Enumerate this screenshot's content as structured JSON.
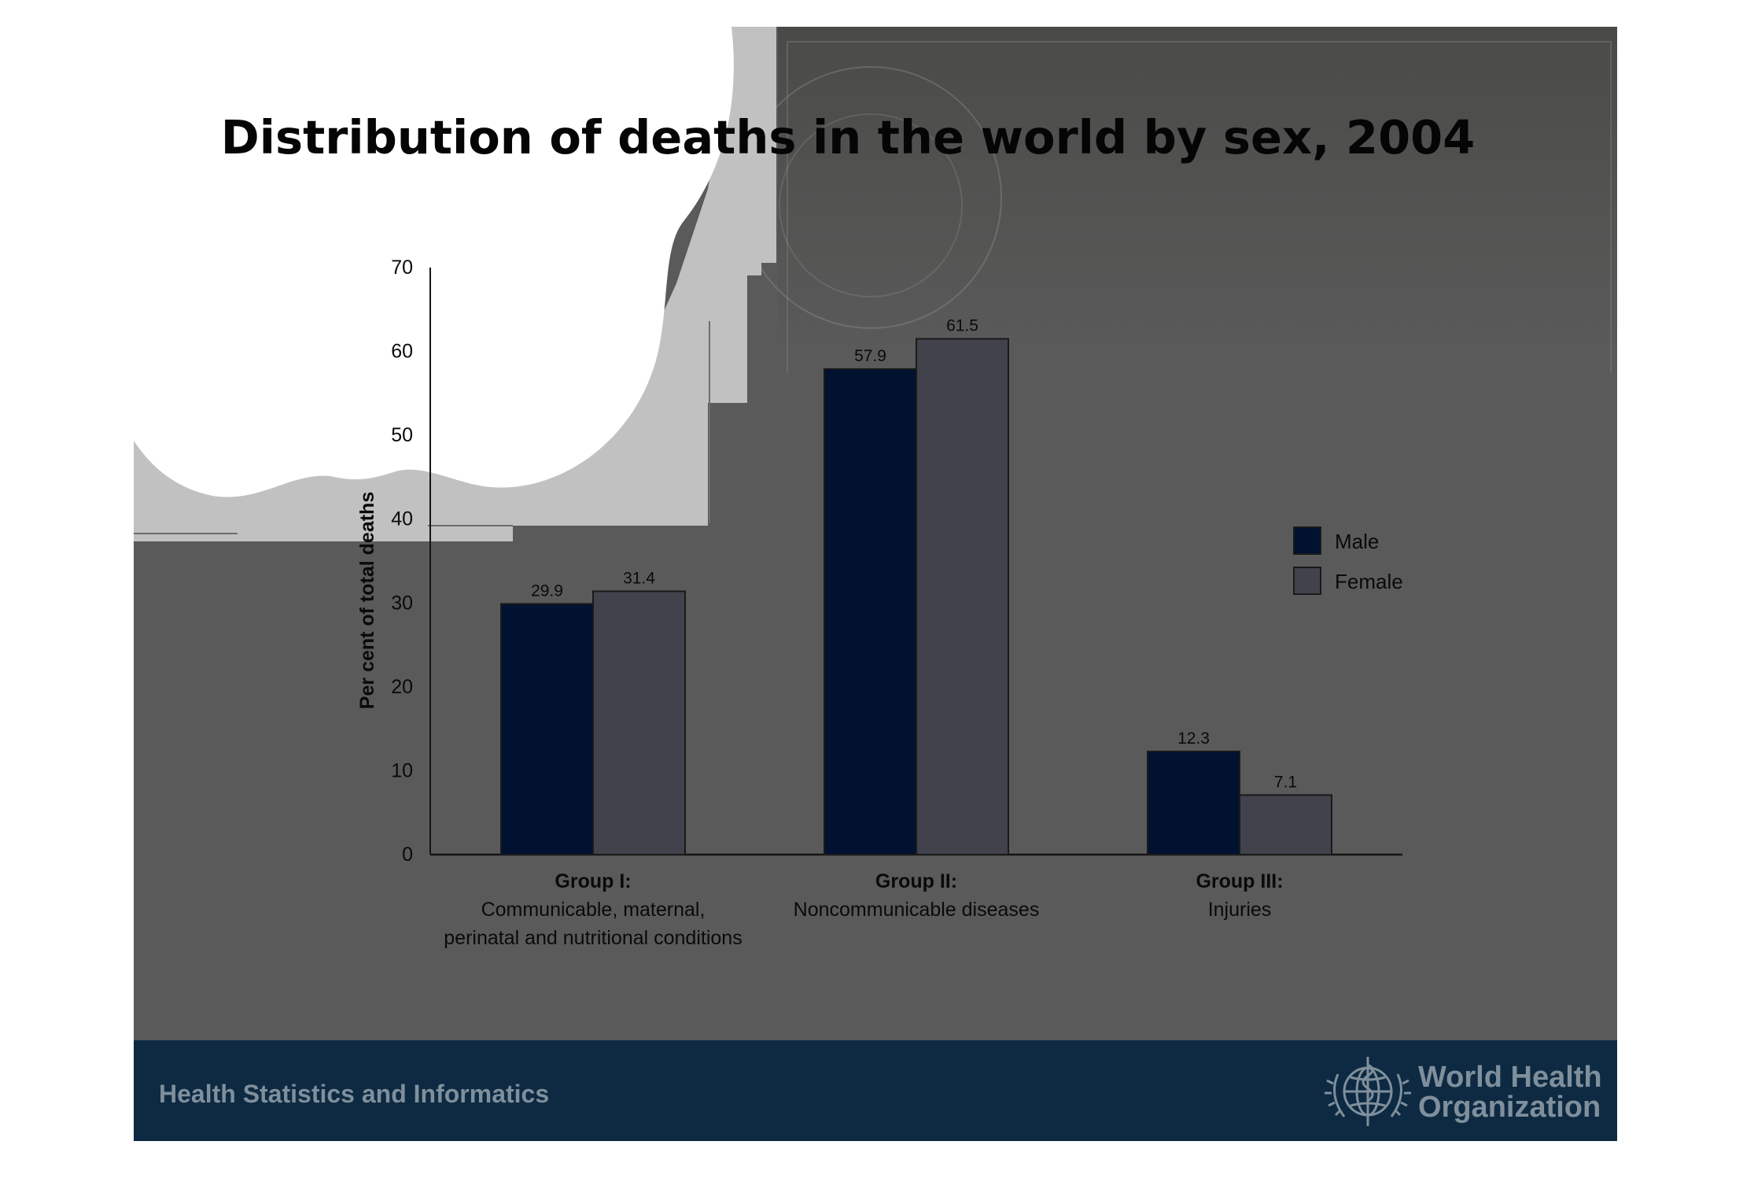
{
  "slide": {
    "title": "Distribution of deaths in the world by sex, 2004",
    "footer_text": "Health Statistics and Informatics",
    "org_name_line1": "World Health",
    "org_name_line2": "Organization",
    "org_logo": "who-emblem-icon"
  },
  "colors": {
    "male": "#011230",
    "female": "#42424c",
    "slide_bg": "#5a5a5a",
    "footer_bg": "#0d2a42",
    "footer_text": "#7f8f9c"
  },
  "chart_data": {
    "type": "bar",
    "title": "Distribution of deaths in the world by sex, 2004",
    "ylabel": "Per cent of total deaths",
    "xlabel": "",
    "ylim": [
      0,
      70
    ],
    "yticks": [
      0,
      10,
      20,
      30,
      40,
      50,
      60,
      70
    ],
    "grid": false,
    "legend_position": "right",
    "categories": [
      {
        "title": "Group I:",
        "subtitle": [
          "Communicable, maternal,",
          "perinatal and nutritional conditions"
        ]
      },
      {
        "title": "Group II:",
        "subtitle": [
          "Noncommunicable diseases"
        ]
      },
      {
        "title": "Group III:",
        "subtitle": [
          "Injuries"
        ]
      }
    ],
    "series": [
      {
        "name": "Male",
        "color": "#011230",
        "values": [
          29.9,
          57.9,
          12.3
        ]
      },
      {
        "name": "Female",
        "color": "#42424c",
        "values": [
          31.4,
          61.5,
          7.1
        ]
      }
    ]
  }
}
